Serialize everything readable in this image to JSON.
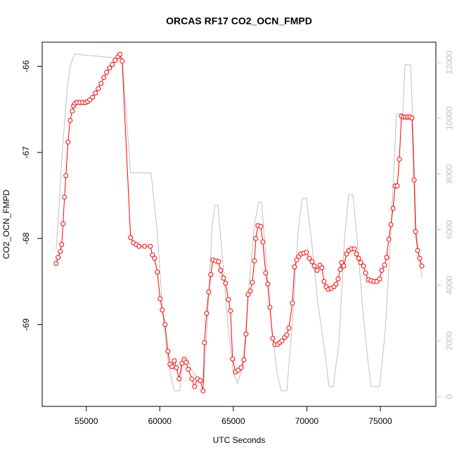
{
  "chart_data": {
    "type": "line-points",
    "title": "ORCAS RF17 CO2_OCN_FMPD",
    "xlabel": "UTC Seconds",
    "ylabel": "CO2_OCN_FMPD",
    "xlim": [
      52000,
      78780
    ],
    "xticks": [
      55000,
      60000,
      65000,
      70000,
      75000
    ],
    "ylim": [
      -69.95,
      -65.72
    ],
    "yticks": [
      -69,
      -68,
      -67,
      -66
    ],
    "y2lim": [
      -354,
      12733
    ],
    "y2ticks": [
      0,
      2000,
      4000,
      6000,
      8000,
      10000,
      12000
    ],
    "y2color": "#c0c0c0",
    "series": [
      {
        "color": "#c0c0c0",
        "axis": "y2",
        "markers": false,
        "x": [
          52942,
          53133,
          53325,
          53516,
          53708,
          53899,
          54186,
          57249,
          57440,
          58014,
          59402,
          59832,
          60215,
          60598,
          60981,
          61364,
          61555,
          61842,
          62129,
          62608,
          62991,
          63278,
          63565,
          63756,
          63948,
          64235,
          64617,
          65000,
          65287,
          65670,
          66053,
          66436,
          66723,
          66914,
          67201,
          67584,
          67967,
          68254,
          68637,
          69020,
          69402,
          69690,
          69976,
          70359,
          70742,
          71221,
          71508,
          71795,
          72178,
          72561,
          72848,
          73135,
          73422,
          73805,
          74187,
          74379,
          74953,
          75336,
          75719,
          76101,
          76389,
          76532,
          76676,
          77058,
          77250,
          77442,
          77824
        ],
        "values": [
          5283,
          6672,
          8440,
          9830,
          11093,
          11850,
          12305,
          12154,
          12154,
          8036,
          8036,
          5914,
          2883,
          1115,
          205,
          205,
          1443,
          1443,
          988,
          610,
          483,
          3136,
          6167,
          6874,
          6874,
          5156,
          2630,
          863,
          483,
          1115,
          3893,
          6167,
          6999,
          6999,
          5156,
          2630,
          863,
          205,
          205,
          2630,
          5914,
          7127,
          7127,
          5409,
          3388,
          1620,
          356,
          356,
          1872,
          5661,
          7253,
          7253,
          5661,
          3136,
          1115,
          356,
          356,
          2377,
          5914,
          10158,
          10158,
          10158,
          11926,
          11926,
          9198,
          5914,
          4272
        ]
      },
      {
        "color": "#ff0000",
        "markers": true,
        "x": [
          52942,
          53086,
          53229,
          53325,
          53421,
          53516,
          53612,
          53755,
          53899,
          54043,
          54138,
          54234,
          54378,
          54569,
          54760,
          54952,
          55095,
          55239,
          55430,
          55622,
          55813,
          56004,
          56196,
          56387,
          56579,
          56770,
          56961,
          57153,
          57296,
          57440,
          58014,
          58206,
          58397,
          58588,
          58971,
          59354,
          59497,
          59641,
          59832,
          60024,
          60167,
          60359,
          60550,
          60694,
          60837,
          60981,
          61124,
          61316,
          61507,
          61651,
          61794,
          61938,
          62177,
          62368,
          62560,
          62751,
          62942,
          63038,
          63182,
          63325,
          63469,
          63612,
          63804,
          63995,
          64139,
          64330,
          64474,
          64665,
          64809,
          64952,
          65144,
          65335,
          65526,
          65718,
          65861,
          66005,
          66149,
          66292,
          66436,
          66531,
          66675,
          66866,
          67010,
          67201,
          67345,
          67488,
          67680,
          67823,
          68015,
          68158,
          68302,
          68493,
          68637,
          68780,
          69020,
          69163,
          69307,
          69450,
          69594,
          69785,
          69976,
          70168,
          70359,
          70503,
          70694,
          70886,
          71029,
          71173,
          71316,
          71460,
          71651,
          71843,
          71986,
          72130,
          72273,
          72369,
          72513,
          72704,
          72848,
          73039,
          73230,
          73374,
          73518,
          73661,
          73853,
          73996,
          74187,
          74379,
          74570,
          74762,
          74953,
          75097,
          75288,
          75432,
          75575,
          75719,
          75862,
          76006,
          76149,
          76293,
          76437,
          76580,
          76724,
          76867,
          77011,
          77154,
          77298,
          77394,
          77537,
          77681,
          77824
        ],
        "values": [
          -68.29,
          -68.22,
          -68.15,
          -68.07,
          -67.83,
          -67.52,
          -67.27,
          -66.88,
          -66.63,
          -66.52,
          -66.46,
          -66.43,
          -66.42,
          -66.42,
          -66.42,
          -66.42,
          -66.41,
          -66.39,
          -66.36,
          -66.31,
          -66.26,
          -66.2,
          -66.13,
          -66.07,
          -66.02,
          -65.98,
          -65.93,
          -65.89,
          -65.86,
          -65.94,
          -67.99,
          -68.05,
          -68.07,
          -68.09,
          -68.09,
          -68.09,
          -68.19,
          -68.23,
          -68.39,
          -68.7,
          -68.83,
          -69.0,
          -69.31,
          -69.46,
          -69.49,
          -69.42,
          -69.5,
          -69.63,
          -69.45,
          -69.41,
          -69.44,
          -69.52,
          -69.63,
          -69.72,
          -69.63,
          -69.65,
          -69.77,
          -69.21,
          -68.87,
          -68.62,
          -68.42,
          -68.25,
          -68.26,
          -68.27,
          -68.37,
          -68.46,
          -68.52,
          -68.71,
          -68.84,
          -69.4,
          -69.55,
          -69.53,
          -69.5,
          -69.41,
          -69.11,
          -68.65,
          -68.61,
          -68.51,
          -68.26,
          -68.0,
          -67.85,
          -67.86,
          -68.04,
          -68.4,
          -68.53,
          -68.8,
          -69.16,
          -69.23,
          -69.23,
          -69.21,
          -69.19,
          -69.15,
          -69.12,
          -69.04,
          -68.75,
          -68.33,
          -68.25,
          -68.21,
          -68.18,
          -68.17,
          -68.16,
          -68.23,
          -68.27,
          -68.32,
          -68.37,
          -68.31,
          -68.34,
          -68.5,
          -68.56,
          -68.59,
          -68.58,
          -68.56,
          -68.53,
          -68.47,
          -68.36,
          -68.28,
          -68.32,
          -68.18,
          -68.14,
          -68.12,
          -68.12,
          -68.18,
          -68.23,
          -68.28,
          -68.32,
          -68.4,
          -68.48,
          -68.49,
          -68.5,
          -68.5,
          -68.47,
          -68.37,
          -68.31,
          -68.22,
          -68.01,
          -67.84,
          -67.65,
          -67.39,
          -67.39,
          -67.08,
          -66.58,
          -66.59,
          -66.59,
          -66.59,
          -66.59,
          -66.6,
          -67.32,
          -67.92,
          -68.14,
          -68.23,
          -68.32
        ]
      }
    ]
  }
}
